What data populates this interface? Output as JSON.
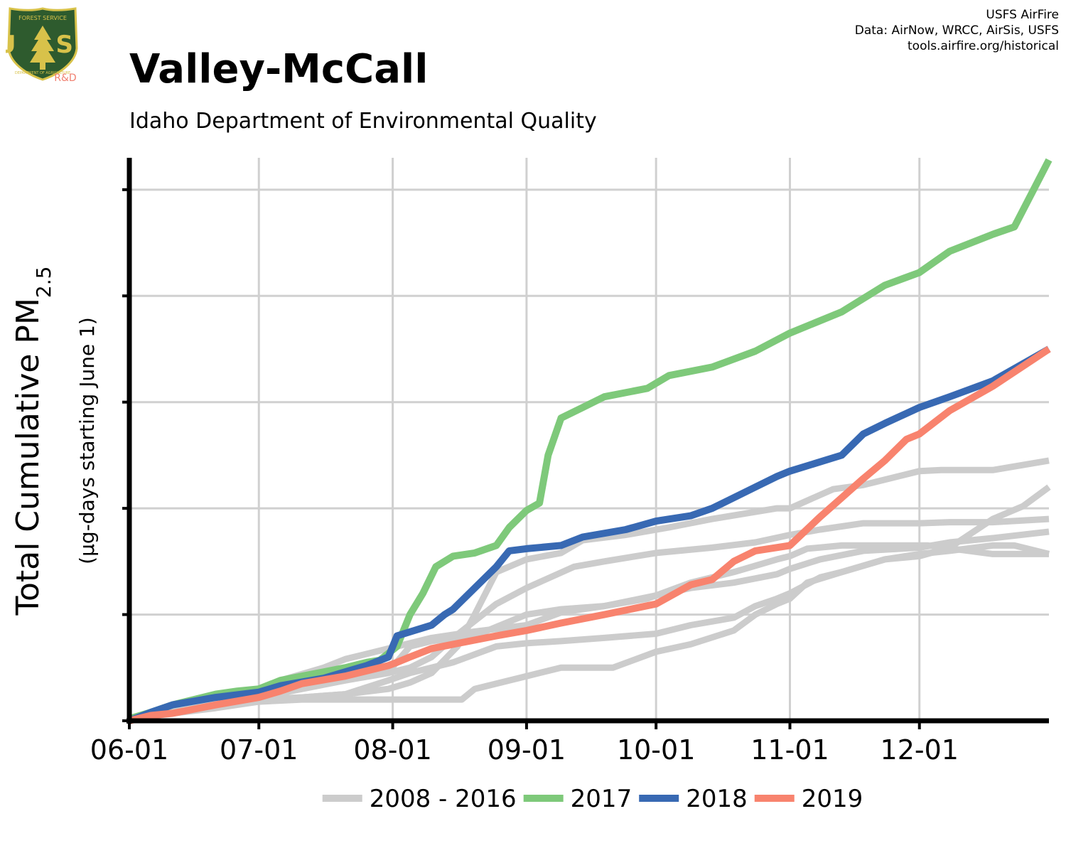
{
  "header": {
    "title": "Valley-McCall",
    "subtitle": "Idaho Department of Environmental Quality"
  },
  "credits": {
    "line1": "USFS AirFire",
    "line2": "Data: AirNow, WRCC, AirSis, USFS",
    "line3": "tools.airfire.org/historical"
  },
  "logo": {
    "text_top": "FOREST SERVICE",
    "text_letters": "U S",
    "text_bottom": "DEPARTMENT OF AGRICULTURE",
    "badge": "R&D",
    "colors": {
      "shield": "#2e5b2e",
      "border": "#d8c24a",
      "badge": "#f08070"
    }
  },
  "chart_data": {
    "type": "line",
    "title": "Valley-McCall",
    "subtitle": "Idaho Department of Environmental Quality",
    "ylabel_main": "Total Cumulative PM",
    "ylabel_sub_script": "2.5",
    "ylabel_units": "(µg-days starting June 1)",
    "x_start": "06-01",
    "x_end": "12-31",
    "x_ticks": [
      "06-01",
      "07-01",
      "08-01",
      "09-01",
      "10-01",
      "11-01",
      "12-01"
    ],
    "x_tick_days": [
      0,
      30,
      61,
      92,
      122,
      153,
      183
    ],
    "x_range_days": [
      0,
      213
    ],
    "y_range": [
      0,
      5.3
    ],
    "y_ticks": [
      0,
      1,
      2,
      3,
      4,
      5
    ],
    "y_tick_labels_shown": false,
    "grid": true,
    "legend_position": "bottom",
    "series": [
      {
        "name": "2008 - 2016",
        "color": "#cccccc",
        "group": "background",
        "lines": [
          [
            [
              0,
              0.02
            ],
            [
              15,
              0.12
            ],
            [
              25,
              0.19
            ],
            [
              30,
              0.28
            ],
            [
              35,
              0.38
            ],
            [
              45,
              0.5
            ],
            [
              50,
              0.58
            ],
            [
              60,
              0.68
            ],
            [
              70,
              0.78
            ],
            [
              80,
              0.84
            ],
            [
              92,
              0.9
            ],
            [
              100,
              1.02
            ],
            [
              110,
              1.08
            ],
            [
              122,
              1.18
            ],
            [
              130,
              1.25
            ],
            [
              140,
              1.3
            ],
            [
              150,
              1.38
            ],
            [
              153,
              1.43
            ],
            [
              160,
              1.52
            ],
            [
              170,
              1.6
            ],
            [
              183,
              1.63
            ],
            [
              190,
              1.68
            ],
            [
              200,
              1.72
            ],
            [
              213,
              1.78
            ]
          ],
          [
            [
              0,
              0.02
            ],
            [
              10,
              0.1
            ],
            [
              20,
              0.18
            ],
            [
              30,
              0.25
            ],
            [
              40,
              0.32
            ],
            [
              50,
              0.38
            ],
            [
              60,
              0.45
            ],
            [
              65,
              0.5
            ],
            [
              70,
              0.6
            ],
            [
              75,
              0.78
            ],
            [
              85,
              1.1
            ],
            [
              92,
              1.25
            ],
            [
              103,
              1.45
            ],
            [
              110,
              1.5
            ],
            [
              122,
              1.58
            ],
            [
              135,
              1.63
            ],
            [
              145,
              1.68
            ],
            [
              153,
              1.75
            ],
            [
              160,
              1.8
            ],
            [
              170,
              1.86
            ],
            [
              183,
              1.86
            ],
            [
              190,
              1.87
            ],
            [
              200,
              1.87
            ],
            [
              213,
              1.9
            ]
          ],
          [
            [
              0,
              0.02
            ],
            [
              20,
              0.15
            ],
            [
              30,
              0.2
            ],
            [
              40,
              0.22
            ],
            [
              50,
              0.25
            ],
            [
              60,
              0.3
            ],
            [
              65,
              0.36
            ],
            [
              70,
              0.45
            ],
            [
              76,
              0.7
            ],
            [
              80,
              1.0
            ],
            [
              85,
              1.4
            ],
            [
              92,
              1.52
            ],
            [
              100,
              1.58
            ],
            [
              105,
              1.7
            ],
            [
              115,
              1.75
            ],
            [
              125,
              1.82
            ],
            [
              135,
              1.9
            ],
            [
              150,
              2.0
            ],
            [
              153,
              2.0
            ],
            [
              163,
              2.18
            ],
            [
              170,
              2.22
            ],
            [
              183,
              2.35
            ],
            [
              188,
              2.36
            ],
            [
              200,
              2.36
            ],
            [
              213,
              2.45
            ]
          ],
          [
            [
              0,
              0.02
            ],
            [
              20,
              0.12
            ],
            [
              30,
              0.18
            ],
            [
              40,
              0.2
            ],
            [
              50,
              0.2
            ],
            [
              60,
              0.2
            ],
            [
              70,
              0.2
            ],
            [
              77,
              0.2
            ],
            [
              80,
              0.3
            ],
            [
              92,
              0.42
            ],
            [
              100,
              0.5
            ],
            [
              105,
              0.5
            ],
            [
              112,
              0.5
            ],
            [
              122,
              0.65
            ],
            [
              130,
              0.72
            ],
            [
              140,
              0.85
            ],
            [
              145,
              1.0
            ],
            [
              150,
              1.1
            ],
            [
              153,
              1.15
            ],
            [
              157,
              1.3
            ],
            [
              165,
              1.4
            ],
            [
              175,
              1.52
            ],
            [
              183,
              1.55
            ],
            [
              190,
              1.63
            ],
            [
              200,
              1.9
            ],
            [
              207,
              2.02
            ],
            [
              213,
              2.2
            ]
          ],
          [
            [
              0,
              0.02
            ],
            [
              20,
              0.15
            ],
            [
              30,
              0.2
            ],
            [
              40,
              0.22
            ],
            [
              50,
              0.25
            ],
            [
              60,
              0.38
            ],
            [
              65,
              0.45
            ],
            [
              75,
              0.55
            ],
            [
              85,
              0.7
            ],
            [
              92,
              0.73
            ],
            [
              100,
              0.75
            ],
            [
              110,
              0.78
            ],
            [
              122,
              0.82
            ],
            [
              130,
              0.9
            ],
            [
              140,
              0.97
            ],
            [
              145,
              1.08
            ],
            [
              150,
              1.15
            ],
            [
              153,
              1.2
            ],
            [
              160,
              1.35
            ],
            [
              165,
              1.4
            ],
            [
              175,
              1.52
            ],
            [
              183,
              1.57
            ],
            [
              190,
              1.6
            ],
            [
              200,
              1.65
            ],
            [
              205,
              1.65
            ],
            [
              213,
              1.57
            ]
          ],
          [
            [
              0,
              0.02
            ],
            [
              20,
              0.15
            ],
            [
              30,
              0.22
            ],
            [
              40,
              0.3
            ],
            [
              50,
              0.38
            ],
            [
              60,
              0.46
            ],
            [
              65,
              0.7
            ],
            [
              70,
              0.75
            ],
            [
              80,
              0.8
            ],
            [
              92,
              1.0
            ],
            [
              100,
              1.05
            ],
            [
              110,
              1.08
            ],
            [
              120,
              1.15
            ],
            [
              130,
              1.3
            ],
            [
              140,
              1.4
            ],
            [
              150,
              1.52
            ],
            [
              153,
              1.55
            ],
            [
              157,
              1.62
            ],
            [
              165,
              1.65
            ],
            [
              175,
              1.65
            ],
            [
              185,
              1.65
            ],
            [
              200,
              1.57
            ],
            [
              213,
              1.57
            ]
          ]
        ]
      },
      {
        "name": "2017",
        "color": "#7ec97a",
        "group": "highlight",
        "points": [
          [
            0,
            0.02
          ],
          [
            5,
            0.08
          ],
          [
            10,
            0.15
          ],
          [
            15,
            0.2
          ],
          [
            20,
            0.25
          ],
          [
            25,
            0.28
          ],
          [
            30,
            0.3
          ],
          [
            35,
            0.38
          ],
          [
            40,
            0.42
          ],
          [
            45,
            0.46
          ],
          [
            50,
            0.5
          ],
          [
            55,
            0.55
          ],
          [
            58,
            0.57
          ],
          [
            62,
            0.7
          ],
          [
            65,
            1.0
          ],
          [
            68,
            1.2
          ],
          [
            71,
            1.45
          ],
          [
            75,
            1.55
          ],
          [
            80,
            1.58
          ],
          [
            85,
            1.65
          ],
          [
            88,
            1.82
          ],
          [
            92,
            1.98
          ],
          [
            95,
            2.05
          ],
          [
            97,
            2.5
          ],
          [
            100,
            2.85
          ],
          [
            105,
            2.95
          ],
          [
            110,
            3.05
          ],
          [
            120,
            3.13
          ],
          [
            125,
            3.25
          ],
          [
            135,
            3.33
          ],
          [
            145,
            3.48
          ],
          [
            153,
            3.65
          ],
          [
            165,
            3.85
          ],
          [
            175,
            4.1
          ],
          [
            183,
            4.22
          ],
          [
            190,
            4.42
          ],
          [
            200,
            4.58
          ],
          [
            205,
            4.65
          ],
          [
            213,
            5.28
          ]
        ]
      },
      {
        "name": "2018",
        "color": "#3869b3",
        "group": "highlight",
        "points": [
          [
            0,
            0.0
          ],
          [
            5,
            0.08
          ],
          [
            10,
            0.15
          ],
          [
            20,
            0.22
          ],
          [
            30,
            0.27
          ],
          [
            35,
            0.33
          ],
          [
            45,
            0.4
          ],
          [
            55,
            0.52
          ],
          [
            60,
            0.6
          ],
          [
            62,
            0.8
          ],
          [
            66,
            0.85
          ],
          [
            70,
            0.9
          ],
          [
            73,
            1.0
          ],
          [
            75,
            1.05
          ],
          [
            80,
            1.25
          ],
          [
            85,
            1.45
          ],
          [
            88,
            1.6
          ],
          [
            92,
            1.62
          ],
          [
            100,
            1.65
          ],
          [
            105,
            1.73
          ],
          [
            115,
            1.8
          ],
          [
            122,
            1.88
          ],
          [
            130,
            1.93
          ],
          [
            135,
            2.0
          ],
          [
            145,
            2.2
          ],
          [
            150,
            2.3
          ],
          [
            153,
            2.35
          ],
          [
            165,
            2.5
          ],
          [
            170,
            2.7
          ],
          [
            175,
            2.8
          ],
          [
            183,
            2.95
          ],
          [
            190,
            3.05
          ],
          [
            200,
            3.2
          ],
          [
            213,
            3.5
          ]
        ]
      },
      {
        "name": "2019",
        "color": "#f8836e",
        "group": "highlight",
        "points": [
          [
            0,
            0.0
          ],
          [
            5,
            0.05
          ],
          [
            10,
            0.07
          ],
          [
            20,
            0.15
          ],
          [
            30,
            0.22
          ],
          [
            35,
            0.28
          ],
          [
            40,
            0.35
          ],
          [
            50,
            0.42
          ],
          [
            60,
            0.52
          ],
          [
            62,
            0.55
          ],
          [
            65,
            0.6
          ],
          [
            70,
            0.68
          ],
          [
            75,
            0.72
          ],
          [
            85,
            0.8
          ],
          [
            92,
            0.85
          ],
          [
            100,
            0.92
          ],
          [
            110,
            1.0
          ],
          [
            122,
            1.1
          ],
          [
            130,
            1.28
          ],
          [
            135,
            1.33
          ],
          [
            140,
            1.5
          ],
          [
            145,
            1.6
          ],
          [
            153,
            1.65
          ],
          [
            160,
            1.92
          ],
          [
            165,
            2.1
          ],
          [
            170,
            2.28
          ],
          [
            175,
            2.45
          ],
          [
            180,
            2.65
          ],
          [
            183,
            2.7
          ],
          [
            190,
            2.92
          ],
          [
            200,
            3.15
          ],
          [
            213,
            3.5
          ]
        ]
      }
    ]
  }
}
